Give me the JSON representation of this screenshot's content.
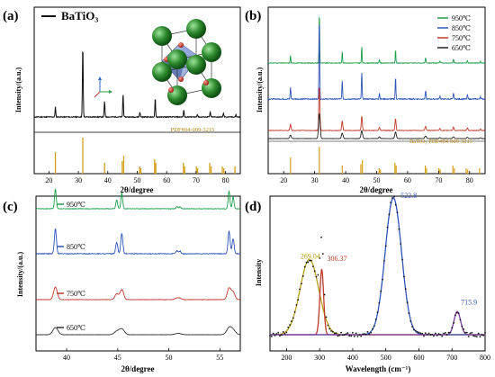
{
  "chart_data": [
    {
      "panel": "(a)",
      "type": "line",
      "title": "BaTiO₃",
      "xlabel": "2θ/degree",
      "ylabel": "Intensity/(a.u.)",
      "xlim": [
        15,
        85
      ],
      "xticks": [
        20,
        30,
        40,
        50,
        60,
        70,
        80
      ],
      "legend": [
        "BaTiO₃"
      ],
      "legend_position": "top-left",
      "reference_label": "PDF#04-009-3215",
      "peaks": [
        {
          "x": 22.2,
          "y": 0.14
        },
        {
          "x": 31.5,
          "y": 1.0
        },
        {
          "x": 38.9,
          "y": 0.22
        },
        {
          "x": 45.2,
          "y": 0.32
        },
        {
          "x": 50.9,
          "y": 0.07
        },
        {
          "x": 56.1,
          "y": 0.26
        },
        {
          "x": 65.8,
          "y": 0.1
        },
        {
          "x": 70.4,
          "y": 0.04
        },
        {
          "x": 74.8,
          "y": 0.07
        },
        {
          "x": 79.3,
          "y": 0.05
        },
        {
          "x": 83.5,
          "y": 0.03
        }
      ],
      "reference_sticks": [
        {
          "x": 22.2,
          "h": 0.6
        },
        {
          "x": 31.5,
          "h": 1.0
        },
        {
          "x": 38.9,
          "h": 0.3
        },
        {
          "x": 44.9,
          "h": 0.35
        },
        {
          "x": 45.4,
          "h": 0.5
        },
        {
          "x": 50.8,
          "h": 0.2
        },
        {
          "x": 51.2,
          "h": 0.15
        },
        {
          "x": 55.9,
          "h": 0.4
        },
        {
          "x": 56.3,
          "h": 0.3
        },
        {
          "x": 65.7,
          "h": 0.3
        },
        {
          "x": 66.1,
          "h": 0.2
        },
        {
          "x": 70.1,
          "h": 0.2
        },
        {
          "x": 70.5,
          "h": 0.15
        },
        {
          "x": 74.6,
          "h": 0.3
        },
        {
          "x": 75.1,
          "h": 0.2
        },
        {
          "x": 78.9,
          "h": 0.2
        },
        {
          "x": 79.4,
          "h": 0.15
        },
        {
          "x": 83.2,
          "h": 0.2
        }
      ],
      "color": "#111111",
      "reference_color": "#d4a017"
    },
    {
      "panel": "(b)",
      "type": "line",
      "xlabel": "2θ/degree",
      "ylabel": "Intensity/(a.u.)",
      "xlim": [
        15,
        85
      ],
      "xticks": [
        20,
        30,
        40,
        50,
        60,
        70,
        80
      ],
      "legend_position": "top-right",
      "reference_label": "BaTiO₃  PDF#04-009-3215",
      "series": [
        {
          "name": "950℃",
          "color": "#1f9e4a"
        },
        {
          "name": "850℃",
          "color": "#2f55b8"
        },
        {
          "name": "750℃",
          "color": "#c0392b"
        },
        {
          "name": "650℃",
          "color": "#222222"
        }
      ]
    },
    {
      "panel": "(c)",
      "type": "line",
      "xlabel": "2θ/degree",
      "ylabel": "Intensity/(a.u.)",
      "xlim": [
        37,
        57
      ],
      "xticks": [
        40,
        45,
        50,
        55
      ],
      "series": [
        {
          "name": "950℃",
          "color": "#1f9e4a"
        },
        {
          "name": "850℃",
          "color": "#2f55b8"
        },
        {
          "name": "750℃",
          "color": "#c0392b"
        },
        {
          "name": "650℃",
          "color": "#333333"
        }
      ]
    },
    {
      "panel": "(d)",
      "type": "line",
      "xlabel": "Wavelength (cm⁻¹)",
      "ylabel": "Intensity",
      "xlim": [
        150,
        800
      ],
      "xticks": [
        200,
        300,
        400,
        500,
        600,
        700,
        800
      ],
      "annotations": [
        {
          "text": "269.04",
          "x": 269.04,
          "color": "#b8a01a"
        },
        {
          "text": "306.37",
          "x": 306.37,
          "color": "#c0392b"
        },
        {
          "text": "522.8",
          "x": 522.8,
          "color": "#2f55b8"
        },
        {
          "text": "715.9",
          "x": 715.9,
          "color": "#2f55b8"
        }
      ],
      "components": [
        {
          "center": 269.04,
          "height": 0.55,
          "width": 40,
          "color": "#b8a01a"
        },
        {
          "center": 306.37,
          "height": 0.48,
          "width": 8,
          "color": "#c0392b"
        },
        {
          "center": 522.8,
          "height": 1.0,
          "width": 35,
          "color": "#2f55b8"
        },
        {
          "center": 715.9,
          "height": 0.17,
          "width": 14,
          "color": "#7b3fa0"
        }
      ]
    }
  ]
}
